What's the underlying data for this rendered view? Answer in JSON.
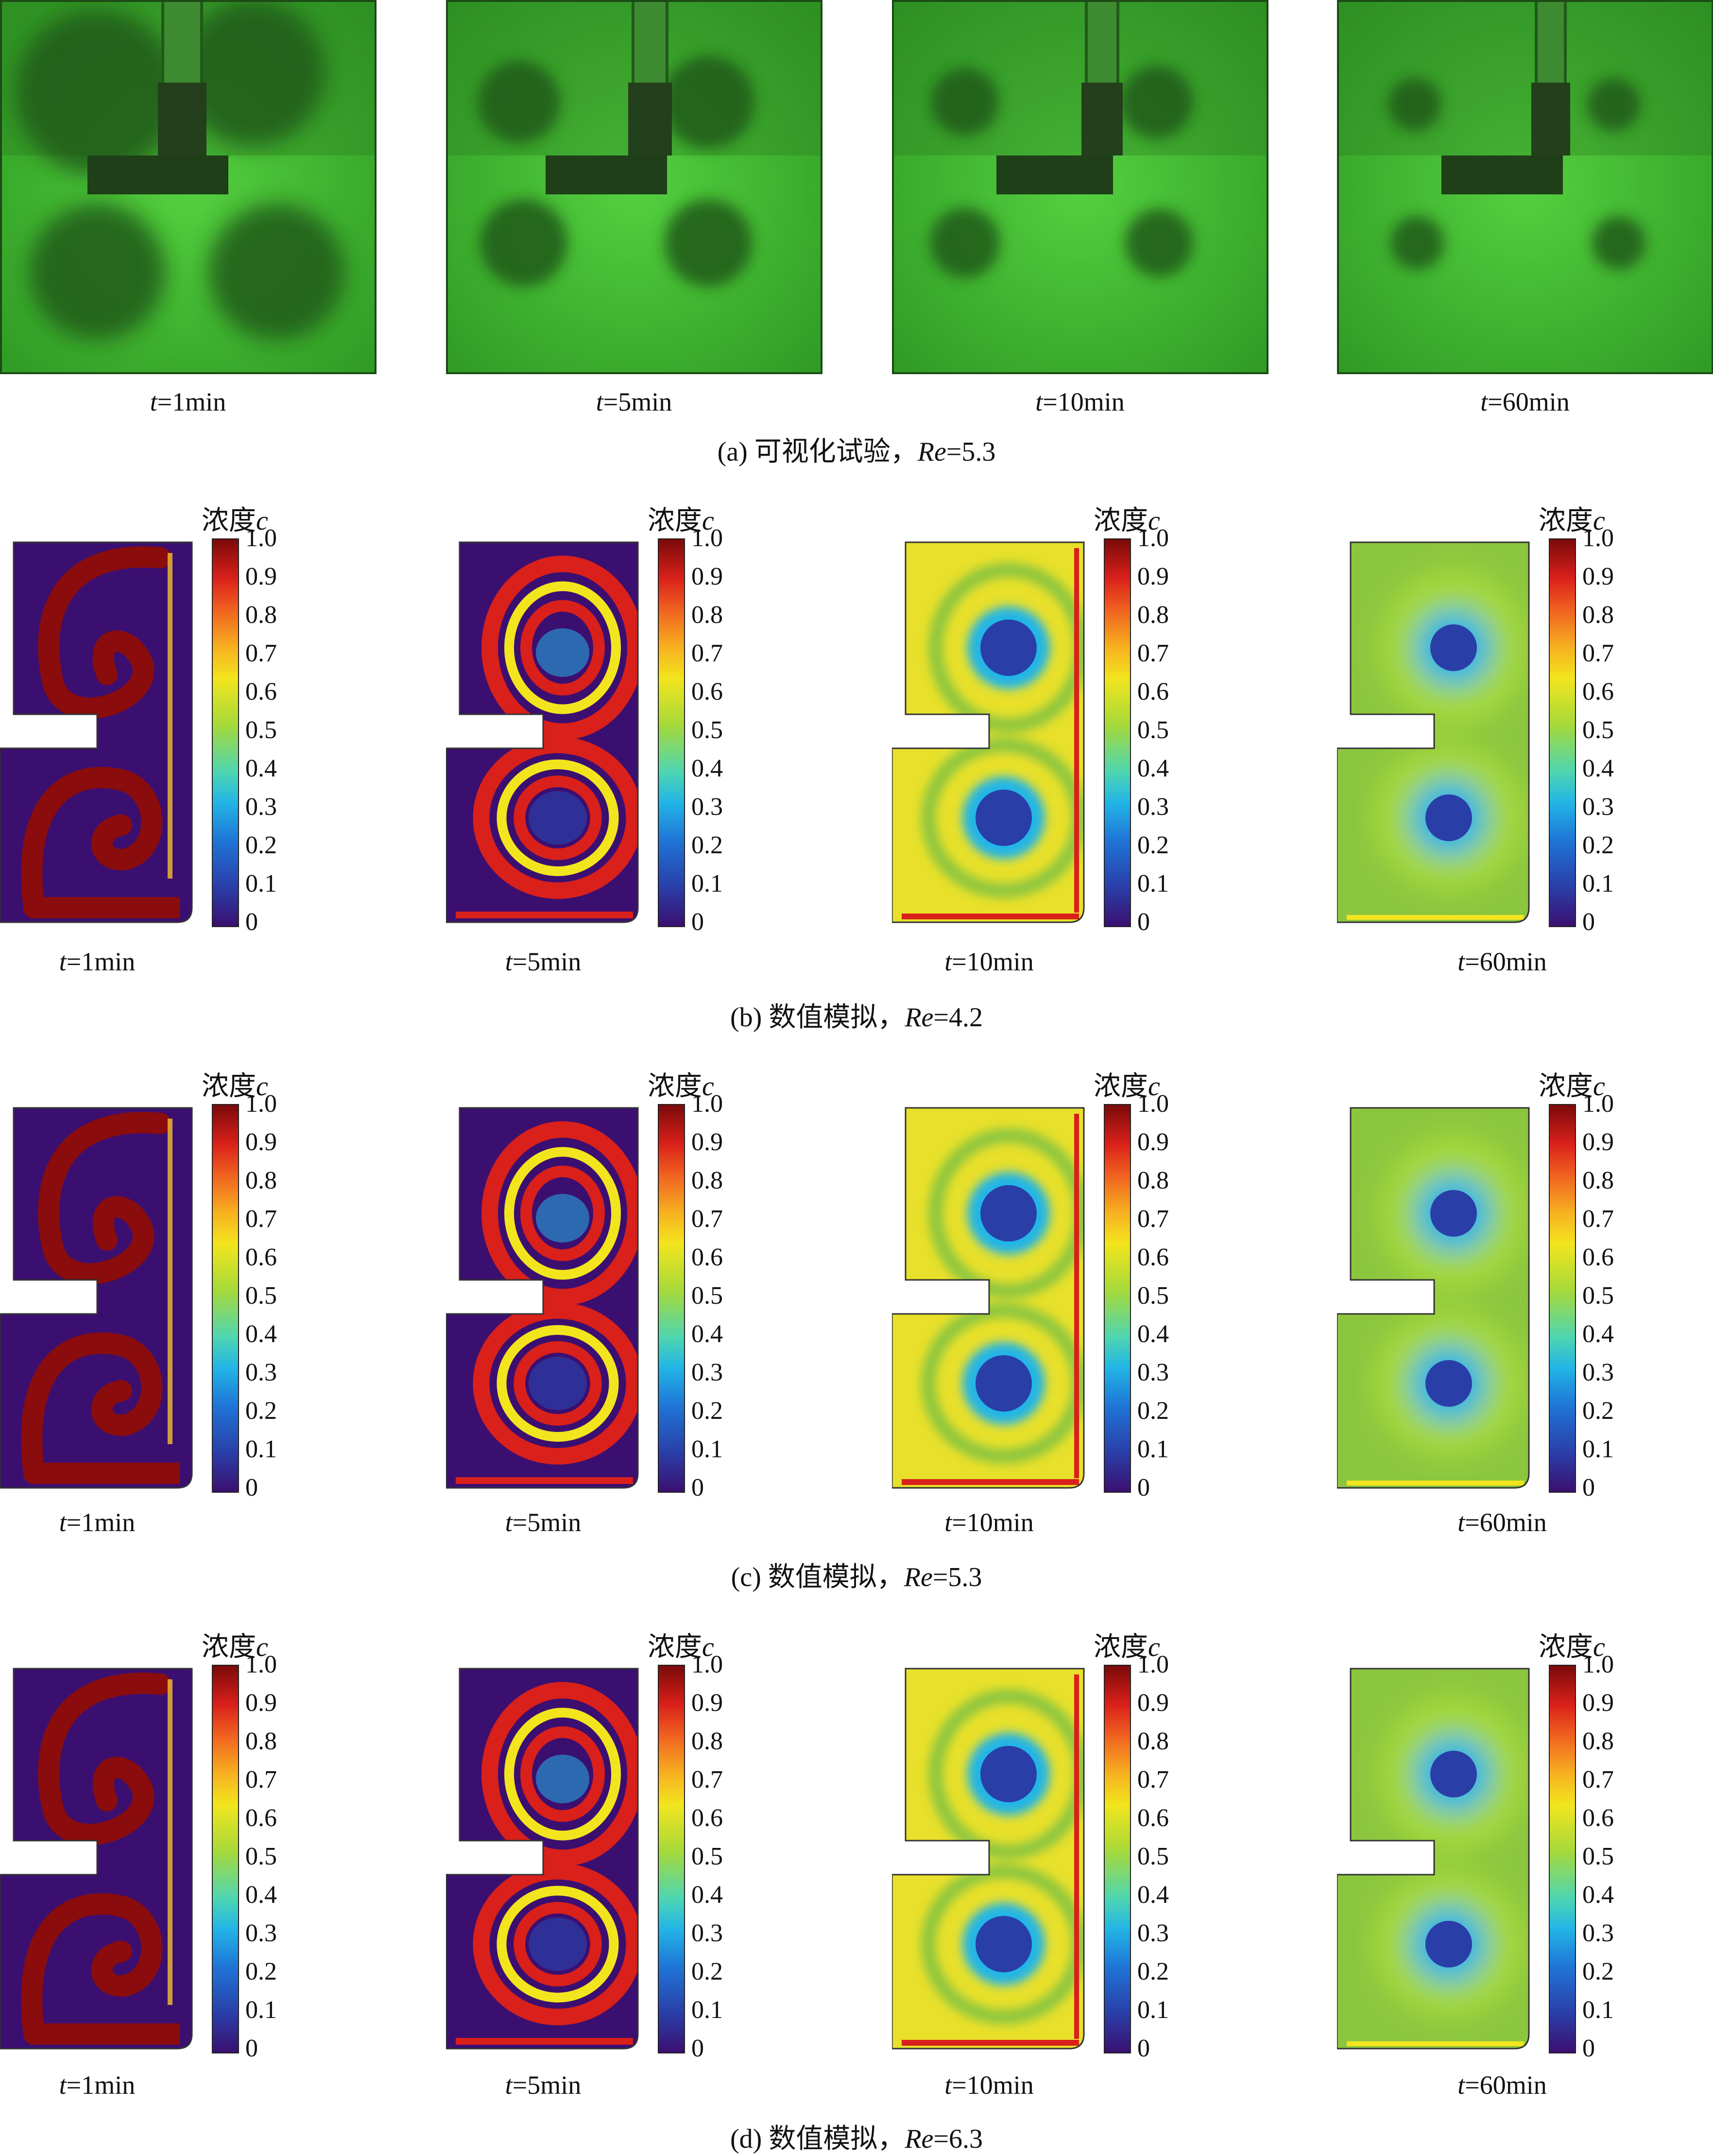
{
  "rows": [
    {
      "id": "a",
      "caption_prefix": "(a) 可视化试验，",
      "caption_re_symbol": "Re",
      "caption_re_value": "=5.3",
      "panels": [
        {
          "t_symbol": "t",
          "t_value": "=1min"
        },
        {
          "t_symbol": "t",
          "t_value": "=5min"
        },
        {
          "t_symbol": "t",
          "t_value": "=10min"
        },
        {
          "t_symbol": "t",
          "t_value": "=60min"
        }
      ]
    },
    {
      "id": "b",
      "caption_prefix": "(b) 数值模拟，",
      "caption_re_symbol": "Re",
      "caption_re_value": "=4.2",
      "panels": [
        {
          "t_symbol": "t",
          "t_value": "=1min"
        },
        {
          "t_symbol": "t",
          "t_value": "=5min"
        },
        {
          "t_symbol": "t",
          "t_value": "=10min"
        },
        {
          "t_symbol": "t",
          "t_value": "=60min"
        }
      ]
    },
    {
      "id": "c",
      "caption_prefix": "(c) 数值模拟，",
      "caption_re_symbol": "Re",
      "caption_re_value": "=5.3",
      "panels": [
        {
          "t_symbol": "t",
          "t_value": "=1min"
        },
        {
          "t_symbol": "t",
          "t_value": "=5min"
        },
        {
          "t_symbol": "t",
          "t_value": "=10min"
        },
        {
          "t_symbol": "t",
          "t_value": "=60min"
        }
      ]
    },
    {
      "id": "d",
      "caption_prefix": "(d) 数值模拟，",
      "caption_re_symbol": "Re",
      "caption_re_value": "=6.3",
      "panels": [
        {
          "t_symbol": "t",
          "t_value": "=1min"
        },
        {
          "t_symbol": "t",
          "t_value": "=5min"
        },
        {
          "t_symbol": "t",
          "t_value": "=10min"
        },
        {
          "t_symbol": "t",
          "t_value": "=60min"
        }
      ]
    }
  ],
  "colorbar": {
    "title_prefix": "浓度",
    "title_symbol": "c",
    "ticks": [
      "1.0",
      "0.9",
      "0.8",
      "0.7",
      "0.6",
      "0.5",
      "0.4",
      "0.3",
      "0.2",
      "0.1",
      "0"
    ]
  },
  "colors": {
    "photo_green": "#3fbf2f",
    "photo_dark": "#1f5a1a",
    "field_background": "#3b0f70",
    "high": "#8a0c0c",
    "mid": "#f2e51e",
    "mixed": "#8cc63f",
    "core": "#2a3ea8"
  }
}
